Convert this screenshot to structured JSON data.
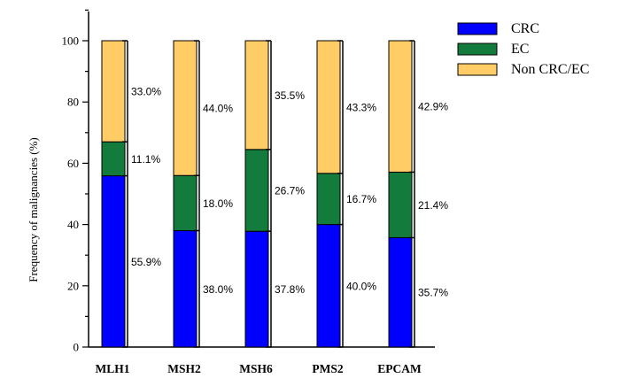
{
  "chart_data": {
    "type": "bar",
    "stacked": true,
    "title": "",
    "xlabel": "",
    "ylabel": "Frequency of malignancies (%)",
    "ylim": [
      0,
      110
    ],
    "yticks": [
      "0",
      "20",
      "40",
      "60",
      "80",
      "100"
    ],
    "categories": [
      "MLH1",
      "MSH2",
      "MSH6",
      "PMS2",
      "EPCAM"
    ],
    "series": [
      {
        "name": "CRC",
        "color": "#0000ff",
        "values": [
          55.9,
          38.0,
          37.8,
          40.0,
          35.7
        ],
        "labels": [
          "55.9%",
          "38.0%",
          "37.8%",
          "40.0%",
          "35.7%"
        ]
      },
      {
        "name": "EC",
        "color": "#137c3c",
        "values": [
          11.1,
          18.0,
          26.7,
          16.7,
          21.4
        ],
        "labels": [
          "11.1%",
          "18.0%",
          "26.7%",
          "16.7%",
          "21.4%"
        ]
      },
      {
        "name": "Non CRC/EC",
        "color": "#ffcc66",
        "values": [
          33.0,
          44.0,
          35.5,
          43.3,
          42.9
        ],
        "labels": [
          "33.0%",
          "44.0%",
          "35.5%",
          "43.3%",
          "42.9%"
        ]
      }
    ],
    "legend": {
      "position": "top-right",
      "entries": [
        "CRC",
        "EC",
        "Non CRC/EC"
      ]
    }
  }
}
